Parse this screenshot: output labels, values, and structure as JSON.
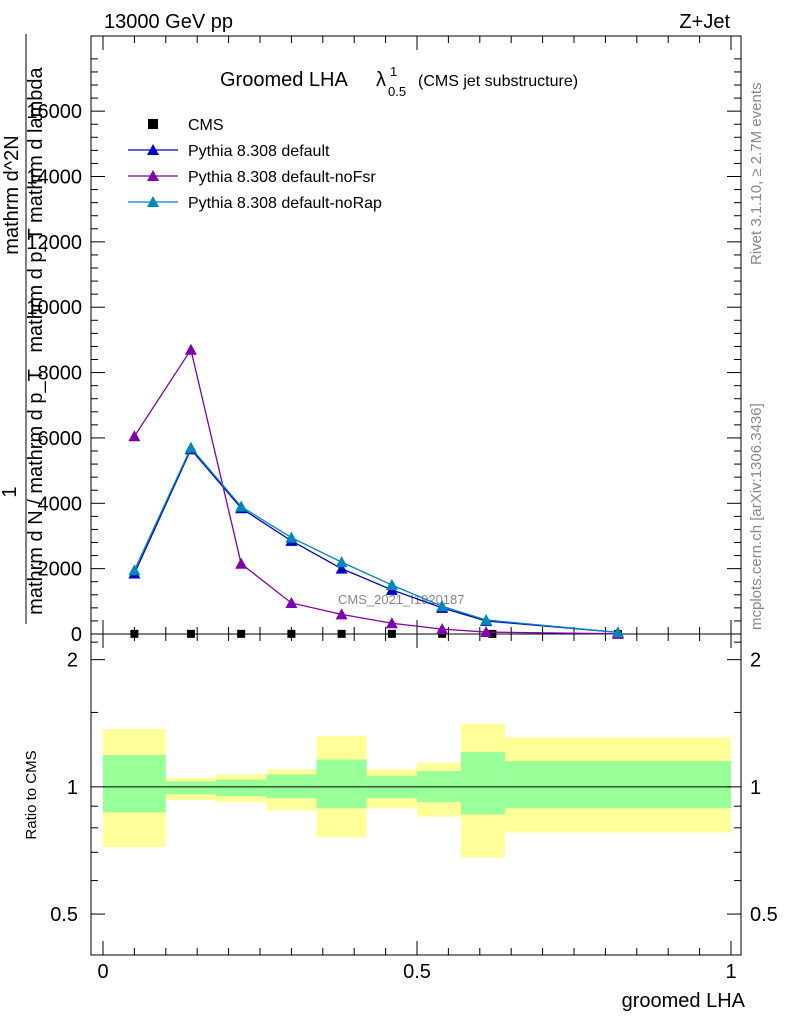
{
  "header": {
    "left": "13000 GeV pp",
    "right": "Z+Jet"
  },
  "title": {
    "main": "Groomed LHA",
    "lambda": "λ",
    "sup": "1",
    "sub": "0.5",
    "note": "(CMS jet substructure)"
  },
  "side_labels": {
    "rivet": "Rivet 3.1.10, ≥ 2.7M events",
    "mcplots": "mcplots.cern.ch [arXiv:1306.3436]"
  },
  "watermark": "CMS_2021_I1920187",
  "colors": {
    "cms": "#000000",
    "default": "#0000cc",
    "noFsr": "#8000b0",
    "noRap": "#0088bb",
    "band_inner": "#99ff99",
    "band_outer": "#ffff99"
  },
  "chart_data": [
    {
      "type": "line",
      "panel": "main",
      "ylabel_lines": [
        "1",
        "mathrm d N / mathrm d p_T",
        "mathrm d^2N",
        "mathrm d p_T mathrm d lambda"
      ],
      "xlim": [
        0,
        1
      ],
      "ylim": [
        0,
        18300
      ],
      "yticks": [
        0,
        2000,
        4000,
        6000,
        8000,
        10000,
        12000,
        14000,
        16000
      ],
      "ytick_labels": [
        "0",
        "2000",
        "4000",
        "6000",
        "8000",
        "10000",
        "12000",
        "14000",
        "16000"
      ],
      "legend_position": "top-left",
      "series": [
        {
          "name": "CMS",
          "marker": "square",
          "x": [
            0.05,
            0.14,
            0.22,
            0.3,
            0.38,
            0.46,
            0.54,
            0.62,
            0.82
          ],
          "y": [
            5,
            5,
            5,
            5,
            5,
            5,
            5,
            3,
            1
          ]
        },
        {
          "name": "Pythia 8.308 default",
          "marker": "triangle",
          "x": [
            0.05,
            0.14,
            0.22,
            0.3,
            0.38,
            0.46,
            0.54,
            0.61,
            0.82
          ],
          "y": [
            1850,
            5650,
            3850,
            2850,
            2000,
            1350,
            800,
            400,
            50
          ]
        },
        {
          "name": "Pythia 8.308 default-noFsr",
          "marker": "triangle",
          "x": [
            0.05,
            0.14,
            0.22,
            0.3,
            0.38,
            0.46,
            0.54,
            0.61,
            0.82
          ],
          "y": [
            6050,
            8700,
            2150,
            950,
            600,
            330,
            150,
            60,
            5
          ]
        },
        {
          "name": "Pythia 8.308 default-noRap",
          "marker": "triangle",
          "x": [
            0.05,
            0.14,
            0.22,
            0.3,
            0.38,
            0.46,
            0.54,
            0.61,
            0.82
          ],
          "y": [
            1950,
            5700,
            3900,
            2950,
            2200,
            1500,
            850,
            430,
            50
          ]
        }
      ]
    },
    {
      "type": "area",
      "panel": "ratio",
      "ylabel": "Ratio to CMS",
      "xlabel": "groomed LHA",
      "xlim": [
        0,
        1
      ],
      "ylim": [
        0.4,
        2.3
      ],
      "yticks": [
        0.5,
        1,
        2
      ],
      "ytick_labels": [
        "0.5",
        "1",
        "2"
      ],
      "xticks": [
        0,
        0.5,
        1
      ],
      "xtick_labels": [
        "0",
        "0.5",
        "1"
      ],
      "bins": [
        {
          "x0": 0.0,
          "x1": 0.1,
          "inner": [
            0.87,
            1.19
          ],
          "outer": [
            0.72,
            1.37
          ]
        },
        {
          "x0": 0.1,
          "x1": 0.18,
          "inner": [
            0.96,
            1.03
          ],
          "outer": [
            0.93,
            1.05
          ]
        },
        {
          "x0": 0.18,
          "x1": 0.26,
          "inner": [
            0.95,
            1.04
          ],
          "outer": [
            0.92,
            1.07
          ]
        },
        {
          "x0": 0.26,
          "x1": 0.34,
          "inner": [
            0.94,
            1.07
          ],
          "outer": [
            0.88,
            1.1
          ]
        },
        {
          "x0": 0.34,
          "x1": 0.42,
          "inner": [
            0.89,
            1.16
          ],
          "outer": [
            0.76,
            1.32
          ]
        },
        {
          "x0": 0.42,
          "x1": 0.5,
          "inner": [
            0.94,
            1.06
          ],
          "outer": [
            0.89,
            1.1
          ]
        },
        {
          "x0": 0.5,
          "x1": 0.57,
          "inner": [
            0.92,
            1.09
          ],
          "outer": [
            0.85,
            1.14
          ]
        },
        {
          "x0": 0.57,
          "x1": 0.64,
          "inner": [
            0.86,
            1.21
          ],
          "outer": [
            0.68,
            1.41
          ]
        },
        {
          "x0": 0.64,
          "x1": 1.0,
          "inner": [
            0.89,
            1.15
          ],
          "outer": [
            0.78,
            1.31
          ]
        }
      ],
      "reference_line": 1
    }
  ]
}
